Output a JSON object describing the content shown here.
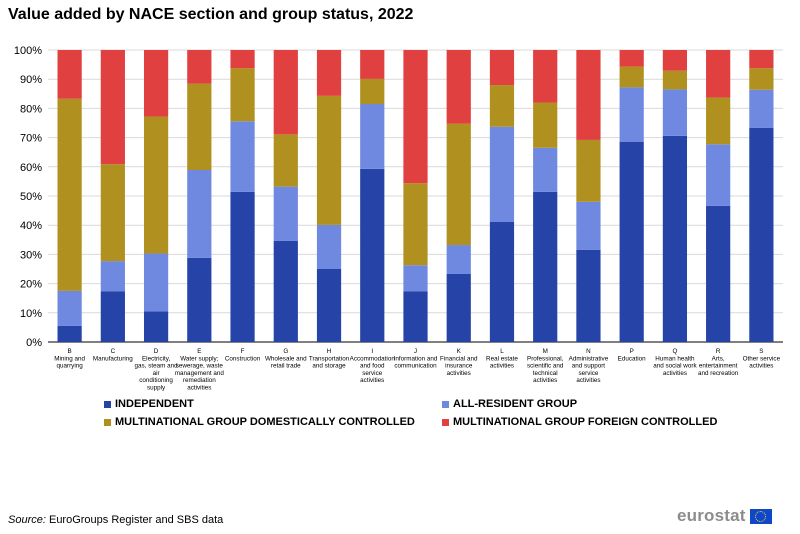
{
  "title": "Value added by NACE section and group status, 2022",
  "source": {
    "label": "Source:",
    "text": " EuroGroups Register and SBS data"
  },
  "logo": {
    "text": "eurostat",
    "flag_icon": "eu-flag-icon"
  },
  "chart_data": {
    "type": "bar",
    "stacked": true,
    "title": "Value added by NACE section and group status, 2022",
    "ylim": [
      0,
      100
    ],
    "yticks": [
      "0%",
      "10%",
      "20%",
      "30%",
      "40%",
      "50%",
      "60%",
      "70%",
      "80%",
      "90%",
      "100%"
    ],
    "ytick_values": [
      0,
      10,
      20,
      30,
      40,
      50,
      60,
      70,
      80,
      90,
      100
    ],
    "grid": true,
    "legend_position": "bottom",
    "categories": [
      {
        "code": "B",
        "label": "Mining and quarrying"
      },
      {
        "code": "C",
        "label": "Manufacturing"
      },
      {
        "code": "D",
        "label": "Electricity, gas, steam and air conditioning supply"
      },
      {
        "code": "E",
        "label": "Water supply; sewerage, waste management and remediation activities"
      },
      {
        "code": "F",
        "label": "Construction"
      },
      {
        "code": "G",
        "label": "Wholesale and retail trade"
      },
      {
        "code": "H",
        "label": "Transportation and storage"
      },
      {
        "code": "I",
        "label": "Accommodation and food service activities"
      },
      {
        "code": "J",
        "label": "Information and communication"
      },
      {
        "code": "K",
        "label": "Financial and insurance activities"
      },
      {
        "code": "L",
        "label": "Real estate activities"
      },
      {
        "code": "M",
        "label": "Professional, scientific and technical activities"
      },
      {
        "code": "N",
        "label": "Administrative and support service activities"
      },
      {
        "code": "P",
        "label": "Education"
      },
      {
        "code": "Q",
        "label": "Human health and social work activities"
      },
      {
        "code": "R",
        "label": "Arts, entertainment and recreation"
      },
      {
        "code": "S",
        "label": "Other service activities"
      }
    ],
    "series": [
      {
        "name": "INDEPENDENT",
        "color": "#2644a7",
        "values": [
          5.5,
          17.3,
          10.5,
          28.8,
          51.4,
          34.6,
          25.0,
          59.3,
          17.3,
          23.3,
          41.1,
          51.4,
          31.6,
          68.6,
          70.6,
          46.6,
          73.3
        ]
      },
      {
        "name": "ALL-RESIDENT GROUP",
        "color": "#6f88e0",
        "values": [
          12.0,
          10.4,
          19.8,
          30.1,
          24.2,
          18.6,
          15.1,
          22.2,
          9.0,
          9.9,
          32.6,
          15.1,
          16.4,
          18.6,
          15.9,
          21.1,
          13.1
        ]
      },
      {
        "name": "MULTINATIONAL GROUP DOMESTICALLY CONTROLLED",
        "color": "#b09120",
        "values": [
          65.8,
          33.2,
          46.9,
          29.6,
          18.2,
          17.9,
          44.2,
          8.6,
          28.1,
          41.6,
          14.3,
          15.5,
          21.2,
          7.1,
          6.4,
          16.0,
          7.4
        ]
      },
      {
        "name": "MULTINATIONAL GROUP FOREIGN CONTROLLED",
        "color": "#e04040",
        "values": [
          16.7,
          39.1,
          22.8,
          11.5,
          6.2,
          28.9,
          15.7,
          9.9,
          45.6,
          25.2,
          12.0,
          18.0,
          30.8,
          5.7,
          7.1,
          16.3,
          6.2
        ]
      }
    ]
  }
}
